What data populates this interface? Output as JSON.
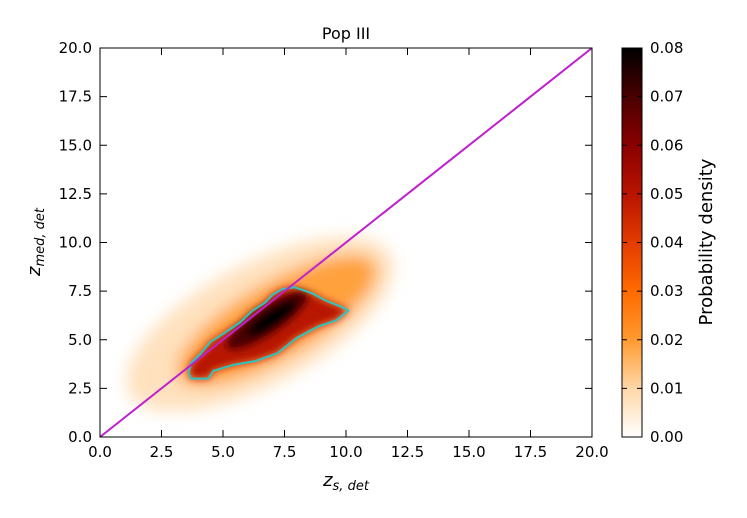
{
  "chart_data": {
    "type": "heatmap",
    "title": "Pop III",
    "xlabel": "z",
    "xlabel_sub": "s, det",
    "ylabel": "z",
    "ylabel_sub": "med, det",
    "xlim": [
      0,
      20
    ],
    "ylim": [
      0,
      20
    ],
    "x_ticks": [
      "0.0",
      "2.5",
      "5.0",
      "7.5",
      "10.0",
      "12.5",
      "15.0",
      "17.5",
      "20.0"
    ],
    "y_ticks": [
      "0.0",
      "2.5",
      "5.0",
      "7.5",
      "10.0",
      "12.5",
      "15.0",
      "17.5",
      "20.0"
    ],
    "grid": false,
    "colormap": "gist_heat_r",
    "colorbar": {
      "label": "Probability density",
      "range": [
        0.0,
        0.08
      ],
      "ticks": [
        "0.00",
        "0.01",
        "0.02",
        "0.03",
        "0.04",
        "0.05",
        "0.06",
        "0.07",
        "0.08"
      ],
      "colors": [
        "#ffffff",
        "#ffd7a8",
        "#ff9a30",
        "#ff6a00",
        "#e33b00",
        "#b81400",
        "#8a0000",
        "#4a0000",
        "#000000"
      ]
    },
    "density_peak": {
      "x": 6.8,
      "y": 6.0
    },
    "density_extent": {
      "x": [
        0.5,
        12.5
      ],
      "y": [
        0.5,
        10.5
      ]
    },
    "diagonal": {
      "x": [
        0,
        20
      ],
      "y": [
        0,
        20
      ],
      "color": "#c01fcf",
      "label": "y = x"
    },
    "contour": {
      "color": "#2ec4c0",
      "points": [
        [
          3.6,
          3.3
        ],
        [
          3.7,
          3.0
        ],
        [
          4.4,
          3.0
        ],
        [
          4.6,
          3.4
        ],
        [
          5.4,
          3.7
        ],
        [
          6.3,
          3.9
        ],
        [
          7.2,
          4.3
        ],
        [
          8.0,
          5.1
        ],
        [
          8.9,
          5.7
        ],
        [
          9.6,
          6.0
        ],
        [
          10.1,
          6.5
        ],
        [
          9.8,
          6.7
        ],
        [
          9.2,
          7.0
        ],
        [
          8.6,
          7.4
        ],
        [
          7.9,
          7.7
        ],
        [
          7.4,
          7.6
        ],
        [
          7.0,
          7.3
        ],
        [
          6.7,
          6.9
        ],
        [
          6.2,
          6.5
        ],
        [
          5.7,
          5.9
        ],
        [
          5.0,
          5.3
        ],
        [
          4.5,
          4.9
        ],
        [
          4.1,
          4.3
        ],
        [
          3.7,
          3.8
        ],
        [
          3.6,
          3.3
        ]
      ]
    }
  }
}
